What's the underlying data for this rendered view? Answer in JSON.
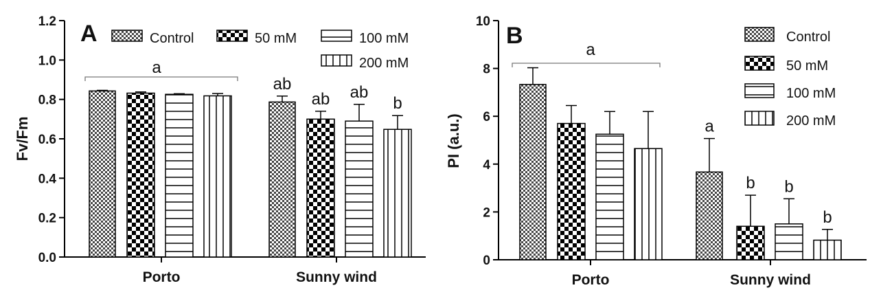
{
  "chart_data": [
    {
      "type": "bar",
      "panel": "A",
      "ylabel": "Fv/Fm",
      "xlabel": "",
      "ylim": [
        0,
        1.2
      ],
      "yticks": [
        "0.0",
        "0.2",
        "0.4",
        "0.6",
        "0.8",
        "1.0",
        "1.2"
      ],
      "categories": [
        "Porto",
        "Sunny wind"
      ],
      "legend_position": "top",
      "series": [
        {
          "name": "Control",
          "pattern": "checker-fine",
          "values": [
            0.843,
            0.787
          ],
          "errors": [
            0.003,
            0.03
          ]
        },
        {
          "name": "50 mM",
          "pattern": "checker-bold",
          "values": [
            0.832,
            0.7
          ],
          "errors": [
            0.006,
            0.04
          ]
        },
        {
          "name": "100 mM",
          "pattern": "horizontal",
          "values": [
            0.826,
            0.69
          ],
          "errors": [
            0.003,
            0.085
          ]
        },
        {
          "name": "200 mM",
          "pattern": "vertical",
          "values": [
            0.818,
            0.648
          ],
          "errors": [
            0.012,
            0.07
          ]
        }
      ],
      "group_labels": [
        {
          "category": "Porto",
          "text": "a",
          "bracket": true
        }
      ],
      "bar_labels": [
        {
          "category": "Sunny wind",
          "labels": [
            "ab",
            "ab",
            "ab",
            "b"
          ]
        }
      ]
    },
    {
      "type": "bar",
      "panel": "B",
      "ylabel": "PI (a.u.)",
      "xlabel": "",
      "ylim": [
        0,
        10
      ],
      "yticks": [
        "0",
        "2",
        "4",
        "6",
        "8",
        "10"
      ],
      "categories": [
        "Porto",
        "Sunny wind"
      ],
      "legend_position": "top-right",
      "series": [
        {
          "name": "Control",
          "pattern": "checker-fine",
          "values": [
            7.33,
            3.67
          ],
          "errors": [
            0.7,
            1.4
          ]
        },
        {
          "name": "50 mM",
          "pattern": "checker-bold",
          "values": [
            5.7,
            1.4
          ],
          "errors": [
            0.75,
            1.3
          ]
        },
        {
          "name": "100 mM",
          "pattern": "horizontal",
          "values": [
            5.25,
            1.5
          ],
          "errors": [
            0.95,
            1.05
          ]
        },
        {
          "name": "200 mM",
          "pattern": "vertical",
          "values": [
            4.65,
            0.82
          ],
          "errors": [
            1.55,
            0.45
          ]
        }
      ],
      "group_labels": [
        {
          "category": "Porto",
          "text": "a",
          "bracket": true
        }
      ],
      "bar_labels": [
        {
          "category": "Sunny wind",
          "labels": [
            "a",
            "b",
            "b",
            "b"
          ]
        }
      ]
    }
  ]
}
